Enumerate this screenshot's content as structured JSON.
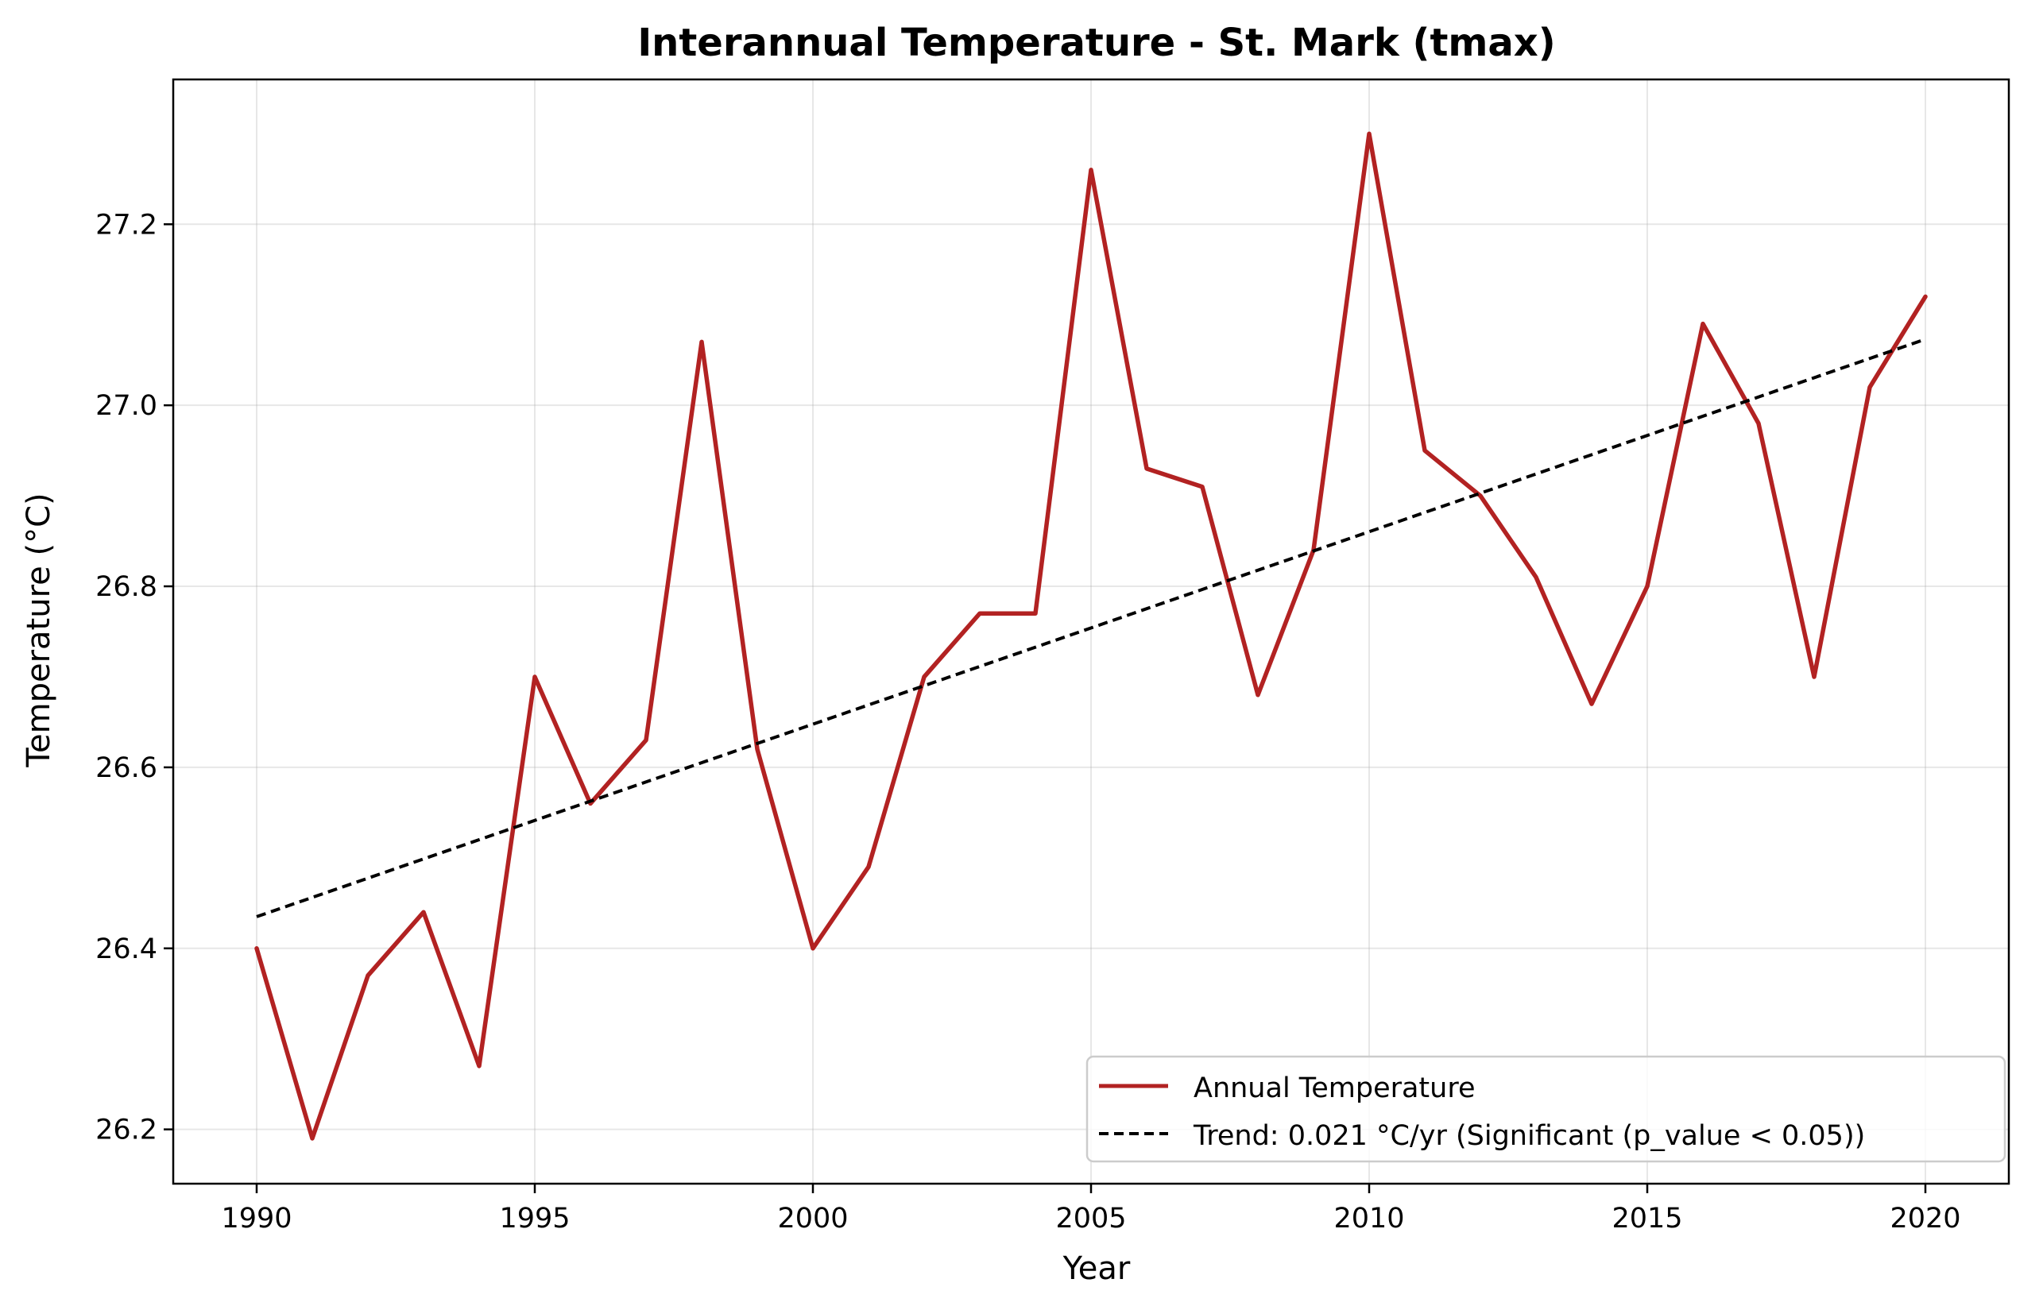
{
  "chart_data": {
    "type": "line",
    "title": "Interannual Temperature - St. Mark (tmax)",
    "xlabel": "Year",
    "ylabel": "Temperature (°C)",
    "xlim": [
      1988.5,
      2021.5
    ],
    "ylim": [
      26.14,
      27.36
    ],
    "x_ticks": [
      1990,
      1995,
      2000,
      2005,
      2010,
      2015,
      2020
    ],
    "x_tick_labels": [
      "1990",
      "1995",
      "2000",
      "2005",
      "2010",
      "2015",
      "2020"
    ],
    "y_ticks": [
      26.2,
      26.4,
      26.6,
      26.8,
      27.0,
      27.2
    ],
    "y_tick_labels": [
      "26.2",
      "26.4",
      "26.6",
      "26.8",
      "27.0",
      "27.2"
    ],
    "grid": true,
    "legend_position": "bottom-right",
    "series": [
      {
        "name": "Annual Temperature",
        "color": "#b22222",
        "style": "solid",
        "x": [
          1990,
          1991,
          1992,
          1993,
          1994,
          1995,
          1996,
          1997,
          1998,
          1999,
          2000,
          2001,
          2002,
          2003,
          2004,
          2005,
          2006,
          2007,
          2008,
          2009,
          2010,
          2011,
          2012,
          2013,
          2014,
          2015,
          2016,
          2017,
          2018,
          2019,
          2020
        ],
        "y": [
          26.4,
          26.19,
          26.37,
          26.44,
          26.27,
          26.7,
          26.56,
          26.63,
          27.07,
          26.62,
          26.4,
          26.49,
          26.7,
          26.77,
          26.77,
          27.26,
          26.93,
          26.91,
          26.68,
          26.84,
          27.3,
          26.95,
          26.9,
          26.81,
          26.67,
          26.8,
          27.09,
          26.98,
          26.7,
          27.02,
          27.12
        ]
      },
      {
        "name": "Trend: 0.021 °C/yr (Significant (p_value < 0.05))",
        "color": "#000000",
        "style": "dashed",
        "x": [
          1990,
          2020
        ],
        "y": [
          26.435,
          27.073
        ]
      }
    ]
  }
}
